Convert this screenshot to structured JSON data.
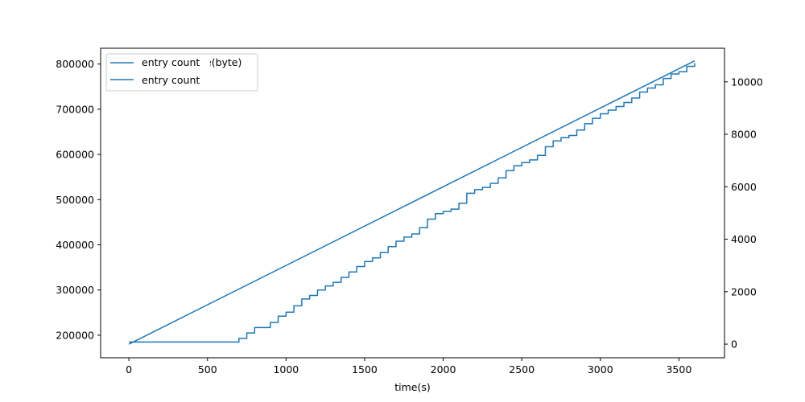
{
  "chart_data": {
    "type": "line",
    "title": "",
    "xlabel": "time(s)",
    "ylabel_left": "",
    "ylabel_right": "",
    "xlim": [
      -180,
      3790
    ],
    "ylim_left": [
      150000,
      835000
    ],
    "ylim_right": [
      -520,
      11280
    ],
    "x_ticks": [
      0,
      500,
      1000,
      1500,
      2000,
      2500,
      3000,
      3500
    ],
    "y_left_ticks": [
      200000,
      300000,
      400000,
      500000,
      600000,
      700000,
      800000
    ],
    "y_right_ticks": [
      0,
      2000,
      4000,
      6000,
      8000,
      10000
    ],
    "legend_placement": "upper-left",
    "line_color": "#1f77b4",
    "legend_entries": [
      {
        "label": "entry count",
        "overlapped_text": "e(byte)"
      },
      {
        "label": "entry count"
      }
    ],
    "series": [
      {
        "name": "size(byte)",
        "axis": "left",
        "step": true,
        "x": [
          0,
          680,
          700,
          750,
          800,
          900,
          950,
          1000,
          1050,
          1100,
          1150,
          1200,
          1250,
          1300,
          1350,
          1400,
          1450,
          1500,
          1550,
          1600,
          1650,
          1700,
          1750,
          1800,
          1850,
          1900,
          1950,
          2000,
          2050,
          2100,
          2150,
          2200,
          2250,
          2300,
          2350,
          2400,
          2450,
          2500,
          2550,
          2600,
          2650,
          2700,
          2750,
          2800,
          2850,
          2900,
          2950,
          3000,
          3050,
          3100,
          3150,
          3200,
          3250,
          3300,
          3350,
          3400,
          3450,
          3500,
          3550,
          3600
        ],
        "y": [
          185000,
          185000,
          193000,
          205000,
          217000,
          228000,
          242000,
          251000,
          265000,
          280000,
          288000,
          300000,
          309000,
          317000,
          328000,
          340000,
          352000,
          363000,
          371000,
          383000,
          396000,
          408000,
          417000,
          424000,
          438000,
          457000,
          469000,
          474000,
          479000,
          492000,
          514000,
          522000,
          527000,
          536000,
          548000,
          564000,
          575000,
          582000,
          588000,
          598000,
          617000,
          630000,
          637000,
          642000,
          654000,
          668000,
          680000,
          690000,
          698000,
          706000,
          715000,
          725000,
          738000,
          747000,
          754000,
          768000,
          778000,
          783000,
          795000,
          802000
        ]
      },
      {
        "name": "entry count",
        "axis": "right",
        "step": false,
        "x": [
          0,
          3600
        ],
        "y": [
          0,
          10800
        ]
      }
    ]
  }
}
